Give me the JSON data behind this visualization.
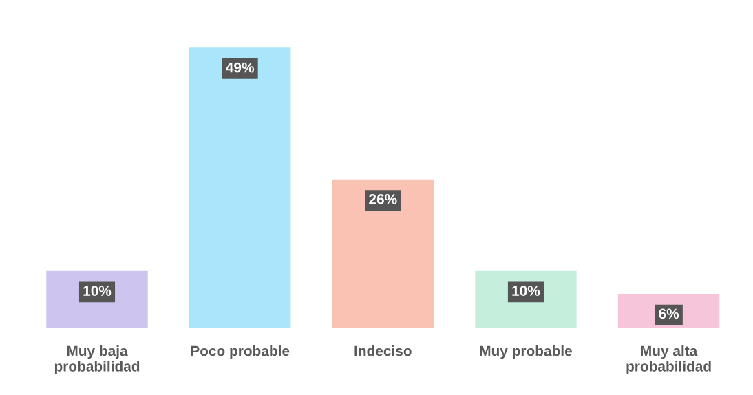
{
  "chart_data": {
    "type": "bar",
    "categories": [
      "Muy baja\nprobabilidad",
      "Poco probable",
      "Indeciso",
      "Muy probable",
      "Muy alta\nprobabilidad"
    ],
    "values": [
      10,
      49,
      26,
      10,
      6
    ],
    "colors": [
      "#cdc5f0",
      "#a9e6fb",
      "#f9c2b3",
      "#c6eedd",
      "#f7c5d9"
    ],
    "data_labels": true,
    "value_labels": [
      "10%",
      "49%",
      "26%",
      "10%",
      "6%"
    ],
    "grid": false,
    "legend": false
  }
}
